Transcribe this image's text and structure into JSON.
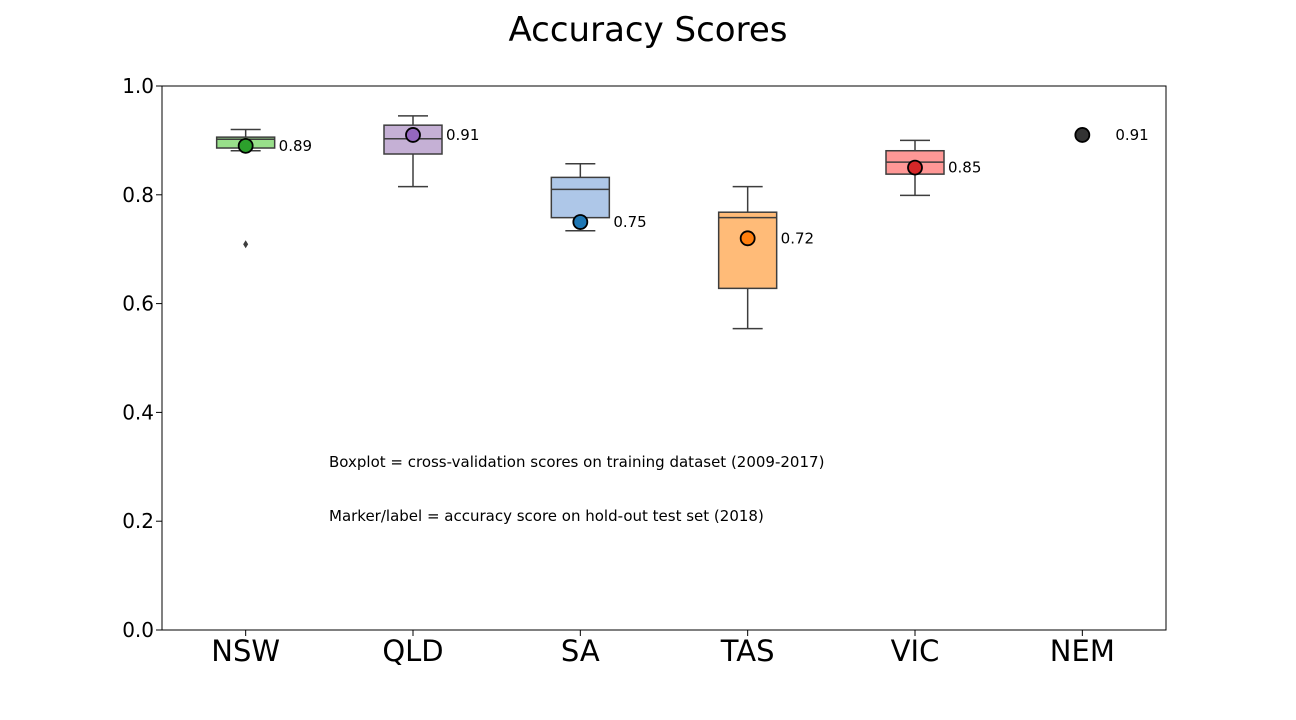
{
  "chart_data": {
    "type": "boxplot",
    "title": "Accuracy Scores",
    "xlabel": "",
    "ylabel": "",
    "ylim": [
      0.0,
      1.0
    ],
    "yticks": [
      "0.0",
      "0.2",
      "0.4",
      "0.6",
      "0.8",
      "1.0"
    ],
    "categories": [
      "NSW",
      "QLD",
      "SA",
      "TAS",
      "VIC",
      "NEM"
    ],
    "grid": false,
    "boxes": [
      {
        "category": "NSW",
        "color": "#98df8a",
        "whisker_low": 0.881,
        "q1": 0.886,
        "median": 0.902,
        "q3": 0.906,
        "whisker_high": 0.92,
        "outliers": [
          0.709
        ]
      },
      {
        "category": "QLD",
        "color": "#c5b0d5",
        "whisker_low": 0.815,
        "q1": 0.875,
        "median": 0.903,
        "q3": 0.928,
        "whisker_high": 0.945,
        "outliers": []
      },
      {
        "category": "SA",
        "color": "#aec7e8",
        "whisker_low": 0.734,
        "q1": 0.758,
        "median": 0.81,
        "q3": 0.832,
        "whisker_high": 0.857,
        "outliers": []
      },
      {
        "category": "TAS",
        "color": "#ffbb78",
        "whisker_low": 0.554,
        "q1": 0.628,
        "median": 0.758,
        "q3": 0.768,
        "whisker_high": 0.815,
        "outliers": []
      },
      {
        "category": "VIC",
        "color": "#ff9896",
        "whisker_low": 0.799,
        "q1": 0.838,
        "median": 0.86,
        "q3": 0.881,
        "whisker_high": 0.9,
        "outliers": []
      }
    ],
    "test_scores": [
      {
        "category": "NSW",
        "value": 0.89,
        "label": "0.89",
        "color": "#2ca02c"
      },
      {
        "category": "QLD",
        "value": 0.91,
        "label": "0.91",
        "color": "#9467bd"
      },
      {
        "category": "SA",
        "value": 0.75,
        "label": "0.75",
        "color": "#1f77b4"
      },
      {
        "category": "TAS",
        "value": 0.72,
        "label": "0.72",
        "color": "#ff7f0e"
      },
      {
        "category": "VIC",
        "value": 0.85,
        "label": "0.85",
        "color": "#d62728"
      },
      {
        "category": "NEM",
        "value": 0.91,
        "label": "0.91",
        "color": "#333333"
      }
    ],
    "annotations": [
      "Boxplot = cross-validation scores on training dataset (2009-2017)",
      "Marker/label = accuracy score on hold-out test set (2018)"
    ]
  }
}
